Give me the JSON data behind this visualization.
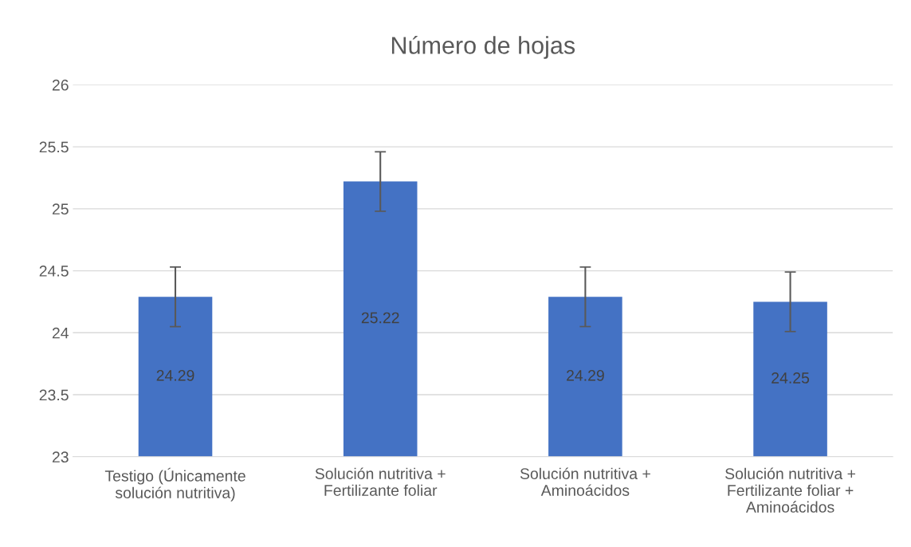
{
  "chart_data": {
    "type": "bar",
    "title": "Número de hojas",
    "categories": [
      "Testigo (Únicamente\nsolución nutritiva)",
      "Solución nutritiva +\nFertilizante foliar",
      "Solución nutritiva +\nAminoácidos",
      "Solución nutritiva +\nFertilizante foliar +\nAminoácidos"
    ],
    "values": [
      24.29,
      25.22,
      24.29,
      24.25
    ],
    "errors": [
      0.24,
      0.24,
      0.24,
      0.24
    ],
    "color": "#4472c4",
    "ylim": [
      23,
      26
    ],
    "yticks": [
      23,
      23.5,
      24,
      24.5,
      25,
      25.5,
      26
    ],
    "grid": "y",
    "data_labels": true
  }
}
